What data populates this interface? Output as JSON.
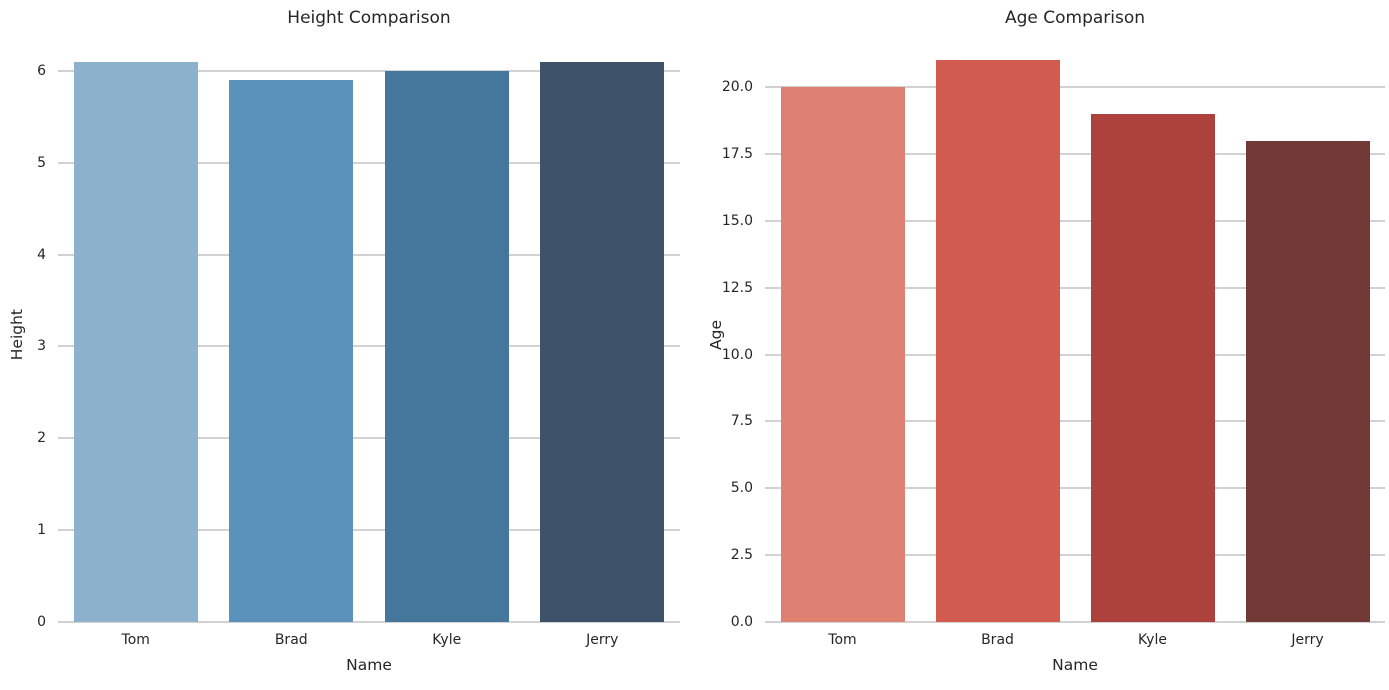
{
  "figure": {
    "background": "#ffffff",
    "grid_color": "#d2d2d2",
    "text_color": "#262626"
  },
  "chart_data": [
    {
      "type": "bar",
      "title": "Height Comparison",
      "xlabel": "Name",
      "ylabel": "Height",
      "categories": [
        "Tom",
        "Brad",
        "Kyle",
        "Jerry"
      ],
      "values": [
        6.1,
        5.9,
        6.0,
        6.1
      ],
      "bar_colors": [
        "#8bb1cd",
        "#5b92bb",
        "#45779c",
        "#3d5268"
      ],
      "ytick_values": [
        0,
        1,
        2,
        3,
        4,
        5,
        6
      ],
      "ytick_labels": [
        "0",
        "1",
        "2",
        "3",
        "4",
        "5",
        "6"
      ],
      "ylim": [
        0,
        6.26
      ],
      "grid": true,
      "legend": "none"
    },
    {
      "type": "bar",
      "title": "Age Comparison",
      "xlabel": "Name",
      "ylabel": "Age",
      "categories": [
        "Tom",
        "Brad",
        "Kyle",
        "Jerry"
      ],
      "values": [
        20,
        21,
        19,
        18
      ],
      "bar_colors": [
        "#de8172",
        "#d25b50",
        "#ad423c",
        "#713a37"
      ],
      "ytick_values": [
        0,
        2.5,
        5,
        7.5,
        10,
        12.5,
        15,
        17.5,
        20
      ],
      "ytick_labels": [
        "0.0",
        "2.5",
        "5.0",
        "7.5",
        "10.0",
        "12.5",
        "15.0",
        "17.5",
        "20.0"
      ],
      "ylim": [
        0,
        21.5
      ],
      "grid": true,
      "legend": "none"
    }
  ]
}
